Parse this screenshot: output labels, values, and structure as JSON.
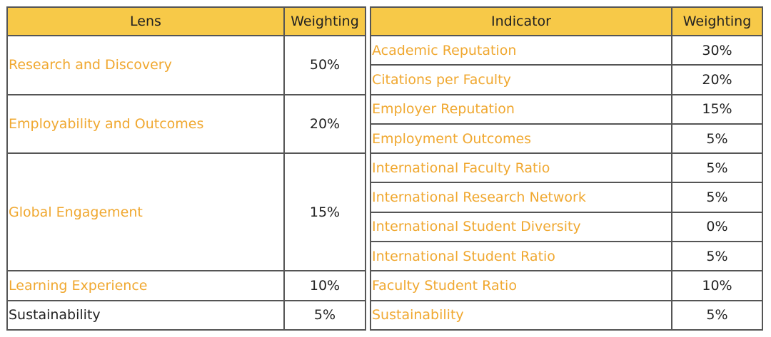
{
  "left_header": [
    "Lens",
    "Weighting"
  ],
  "right_header": [
    "Indicator",
    "Weighting"
  ],
  "lenses": [
    {
      "name": "Research and Discovery",
      "weighting": "50%",
      "indicators": [
        {
          "name": "Academic Reputation",
          "weighting": "30%"
        },
        {
          "name": "Citations per Faculty",
          "weighting": "20%"
        }
      ]
    },
    {
      "name": "Employability and Outcomes",
      "weighting": "20%",
      "indicators": [
        {
          "name": "Employer Reputation",
          "weighting": "15%"
        },
        {
          "name": "Employment Outcomes",
          "weighting": "5%"
        }
      ]
    },
    {
      "name": "Global Engagement",
      "weighting": "15%",
      "indicators": [
        {
          "name": "International Faculty Ratio",
          "weighting": "5%"
        },
        {
          "name": "International Research Network",
          "weighting": "5%"
        },
        {
          "name": "International Student Diversity",
          "weighting": "0%"
        },
        {
          "name": "International Student Ratio",
          "weighting": "5%"
        }
      ]
    },
    {
      "name": "Learning Experience",
      "weighting": "10%",
      "indicators": [
        {
          "name": "Faculty Student Ratio",
          "weighting": "10%"
        }
      ]
    },
    {
      "name": "Sustainability",
      "weighting": "5%",
      "indicators": [
        {
          "name": "Sustainability",
          "weighting": "5%"
        }
      ]
    }
  ]
}
